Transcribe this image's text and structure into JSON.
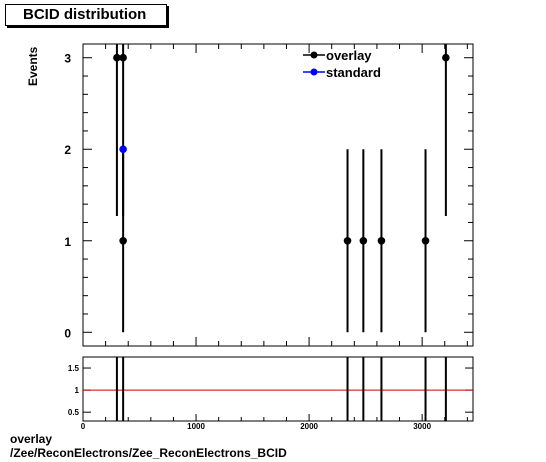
{
  "chart_data": [
    {
      "type": "scatter",
      "title": "BCID distribution",
      "ylabel": "Events",
      "xlim": [
        0,
        3450
      ],
      "ylim": [
        -0.15,
        3.15
      ],
      "yticks": [
        0,
        1,
        2,
        3
      ],
      "ytick_labels": [
        "0",
        "1",
        "2",
        "3"
      ],
      "legend_position": "top-right",
      "series": [
        {
          "name": "overlay",
          "color": "#000000",
          "x": [
            300,
            355,
            355,
            2340,
            2480,
            2640,
            3030,
            3210
          ],
          "y": [
            3,
            1,
            3,
            1,
            1,
            1,
            1,
            3
          ],
          "err": [
            1.73,
            1.0,
            1.73,
            1.0,
            1.0,
            1.0,
            1.0,
            1.73
          ]
        },
        {
          "name": "standard",
          "color": "#0000ff",
          "x": [
            355
          ],
          "y": [
            2
          ],
          "err": [
            0
          ]
        }
      ]
    },
    {
      "type": "scatter",
      "xlim": [
        0,
        3450
      ],
      "ylim": [
        0.3,
        1.75
      ],
      "yticks": [
        0.5,
        1,
        1.5
      ],
      "ytick_labels": [
        "0.5",
        "1",
        "1.5"
      ],
      "xticks": [
        0,
        1000,
        2000,
        3000
      ],
      "xtick_labels": [
        "0",
        "1000",
        "2000",
        "3000"
      ],
      "reference_line": 1,
      "reference_color": "#cc0000",
      "ratio_x": [
        300,
        355,
        2340,
        2480,
        2640,
        3030,
        3210
      ]
    }
  ],
  "footer": {
    "line1": "overlay",
    "line2": "/Zee/ReconElectrons/Zee_ReconElectrons_BCID"
  }
}
